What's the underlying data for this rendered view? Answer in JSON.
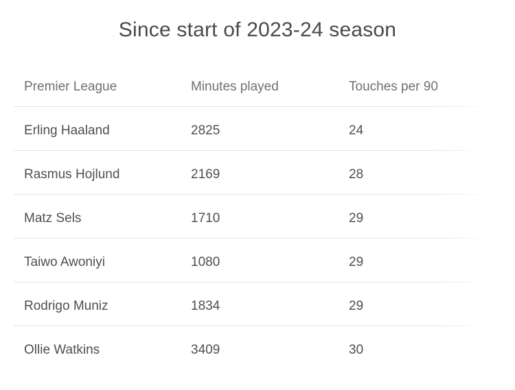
{
  "title": "Since start of 2023-24 season",
  "colors": {
    "background": "#ffffff",
    "title_text": "#4a4a4a",
    "header_text": "#6f6f6f",
    "cell_text": "#4f4f4f",
    "divider": "#e2e2e2"
  },
  "chart_data": {
    "type": "table",
    "title": "Since start of 2023-24 season",
    "columns": [
      "Premier League",
      "Minutes played",
      "Touches per 90"
    ],
    "rows": [
      [
        "Erling Haaland",
        2825,
        24
      ],
      [
        "Rasmus Hojlund",
        2169,
        28
      ],
      [
        "Matz Sels",
        1710,
        29
      ],
      [
        "Taiwo Awoniyi",
        1080,
        29
      ],
      [
        "Rodrigo Muniz",
        1834,
        29
      ],
      [
        "Ollie Watkins",
        3409,
        30
      ]
    ],
    "layout": {
      "legend": false,
      "grid": "horizontal-dividers-only",
      "title_position": "top-center"
    }
  }
}
